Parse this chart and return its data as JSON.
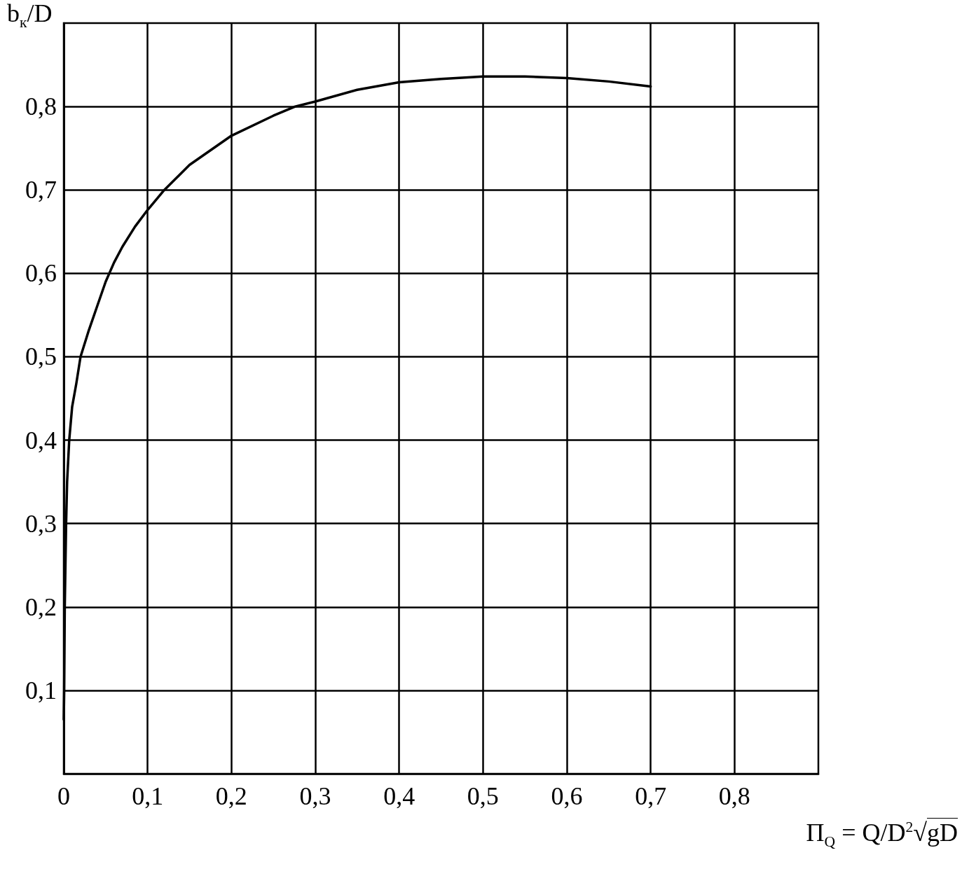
{
  "chart_data": {
    "type": "line",
    "xlabel": "Π$_{Q}$ = Q/D$^{2}$√gD",
    "ylabel": "b$_{к}$/D",
    "x": [
      0,
      0.0005,
      0.0012,
      0.0028,
      0.004,
      0.0065,
      0.01,
      0.015,
      0.02,
      0.03,
      0.04,
      0.05,
      0.06,
      0.07,
      0.085,
      0.1,
      0.12,
      0.15,
      0.2,
      0.25,
      0.276,
      0.3,
      0.35,
      0.4,
      0.45,
      0.5,
      0.55,
      0.6,
      0.65,
      0.7
    ],
    "series": [
      {
        "color": "#000000",
        "values": [
          0.065,
          0.1,
          0.2,
          0.3,
          0.35,
          0.4,
          0.44,
          0.468,
          0.5,
          0.532,
          0.561,
          0.59,
          0.613,
          0.632,
          0.656,
          0.676,
          0.7,
          0.73,
          0.765,
          0.789,
          0.8,
          0.806,
          0.82,
          0.829,
          0.833,
          0.836,
          0.836,
          0.834,
          0.83,
          0.824
        ]
      }
    ],
    "xlim": [
      0,
      0.9
    ],
    "ylim": [
      0,
      0.9
    ],
    "xticks": [
      0,
      {
        "value": 0.1,
        "label": "0,1"
      },
      {
        "value": 0.2,
        "label": "0,2"
      },
      {
        "value": 0.3,
        "label": "0,3"
      },
      {
        "value": 0.4,
        "label": "0,4"
      },
      {
        "value": 0.5,
        "label": "0,5"
      },
      {
        "value": 0.6,
        "label": "0,6"
      },
      {
        "value": 0.7,
        "label": "0,7"
      },
      {
        "value": 0.8,
        "label": "0,8"
      }
    ],
    "yticks": [
      {
        "value": 0.1,
        "label": "0,1"
      },
      {
        "value": 0.2,
        "label": "0,2"
      },
      {
        "value": 0.3,
        "label": "0,3"
      },
      {
        "value": 0.4,
        "label": "0,4"
      },
      {
        "value": 0.5,
        "label": "0,5"
      },
      {
        "value": 0.6,
        "label": "0,6"
      },
      {
        "value": 0.7,
        "label": "0,7"
      },
      {
        "value": 0.8,
        "label": "0,8"
      }
    ],
    "grid": true
  }
}
